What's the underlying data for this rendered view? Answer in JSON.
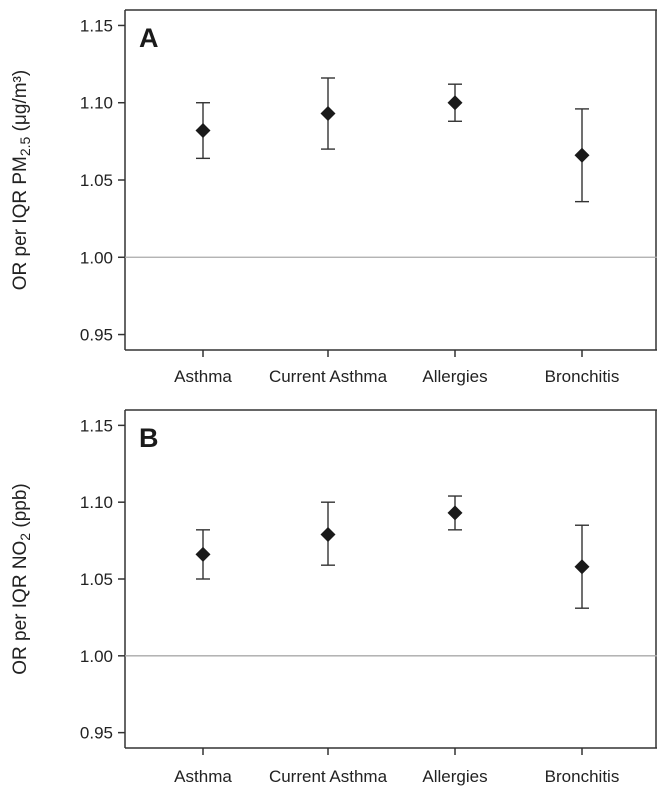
{
  "chart_data": [
    {
      "type": "scatter",
      "panel_label": "A",
      "title": "",
      "xlabel": "",
      "ylabel": "OR per IQR PM2.5 (μg/m³)",
      "ylabel_parts": {
        "pre": "OR per IQR PM",
        "sub": "2.5",
        "post": " (μg/m³)"
      },
      "categories": [
        "Asthma",
        "Current Asthma",
        "Allergies",
        "Bronchitis"
      ],
      "series": [
        {
          "values": [
            1.082,
            1.093,
            1.1,
            1.066
          ],
          "lower": [
            1.064,
            1.07,
            1.088,
            1.036
          ],
          "upper": [
            1.1,
            1.116,
            1.112,
            1.096
          ]
        }
      ],
      "ylim": [
        0.94,
        1.16
      ],
      "yticks": [
        "0.95",
        "1.00",
        "1.05",
        "1.10",
        "1.15"
      ],
      "reference_line": 1.0,
      "grid": false,
      "marker": "diamond",
      "colors": {
        "marker": "#1a1a1a",
        "reference": "#aaaaaa",
        "axis": "#333333"
      }
    },
    {
      "type": "scatter",
      "panel_label": "B",
      "title": "",
      "xlabel": "",
      "ylabel": "OR per IQR NO2 (ppb)",
      "ylabel_parts": {
        "pre": "OR per IQR NO",
        "sub": "2",
        "post": " (ppb)"
      },
      "categories": [
        "Asthma",
        "Current Asthma",
        "Allergies",
        "Bronchitis"
      ],
      "series": [
        {
          "values": [
            1.066,
            1.079,
            1.093,
            1.058
          ],
          "lower": [
            1.05,
            1.059,
            1.082,
            1.031
          ],
          "upper": [
            1.082,
            1.1,
            1.104,
            1.085
          ]
        }
      ],
      "ylim": [
        0.94,
        1.16
      ],
      "yticks": [
        "0.95",
        "1.00",
        "1.05",
        "1.10",
        "1.15"
      ],
      "reference_line": 1.0,
      "grid": false,
      "marker": "diamond",
      "colors": {
        "marker": "#1a1a1a",
        "reference": "#aaaaaa",
        "axis": "#333333"
      }
    }
  ]
}
